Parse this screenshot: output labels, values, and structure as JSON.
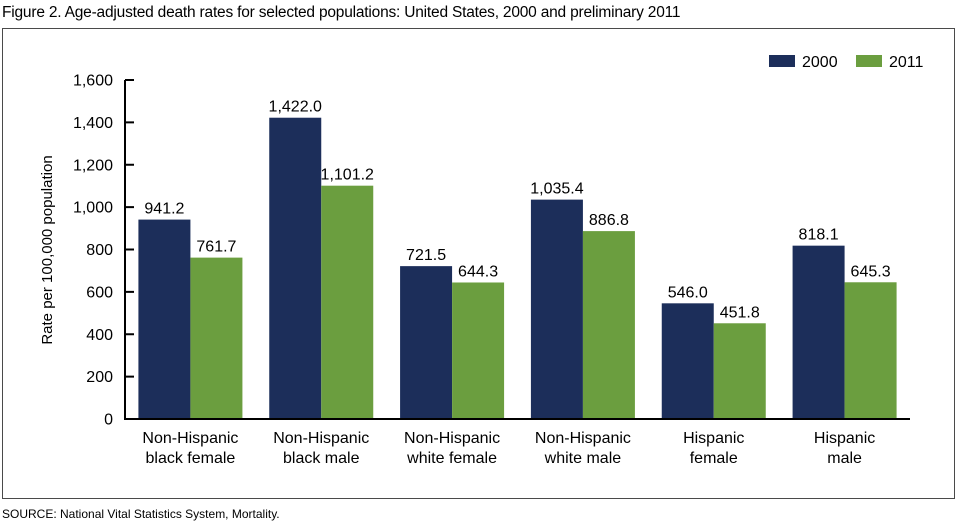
{
  "title": "Figure 2. Age-adjusted death rates for selected populations: United States, 2000 and preliminary 2011",
  "source": "SOURCE: National Vital Statistics System, Mortality.",
  "chart_data": {
    "type": "bar",
    "title": "Figure 2. Age-adjusted death rates for selected populations: United States, 2000 and preliminary 2011",
    "xlabel": "",
    "ylabel": "Rate per 100,000 population",
    "ylim": [
      0,
      1600
    ],
    "yticks": [
      0,
      200,
      400,
      600,
      800,
      1000,
      1200,
      1400,
      1600
    ],
    "ytick_labels": [
      "0",
      "200",
      "400",
      "600",
      "800",
      "1,000",
      "1,200",
      "1,400",
      "1,600"
    ],
    "grid": false,
    "legend_position": "top-right",
    "categories": [
      [
        "Non-Hispanic",
        "black female"
      ],
      [
        "Non-Hispanic",
        "black male"
      ],
      [
        "Non-Hispanic",
        "white female"
      ],
      [
        "Non-Hispanic",
        "white male"
      ],
      [
        "Hispanic",
        "female"
      ],
      [
        "Hispanic",
        "male"
      ]
    ],
    "series": [
      {
        "name": "2000",
        "color": "#1c2e5a",
        "values": [
          941.2,
          1422.0,
          721.5,
          1035.4,
          546.0,
          818.1
        ],
        "labels": [
          "941.2",
          "1,422.0",
          "721.5",
          "1,035.4",
          "546.0",
          "818.1"
        ]
      },
      {
        "name": "2011",
        "color": "#6b9e3f",
        "values": [
          761.7,
          1101.2,
          644.3,
          886.8,
          451.8,
          645.3
        ],
        "labels": [
          "761.7",
          "1,101.2",
          "644.3",
          "886.8",
          "451.8",
          "645.3"
        ]
      }
    ]
  }
}
